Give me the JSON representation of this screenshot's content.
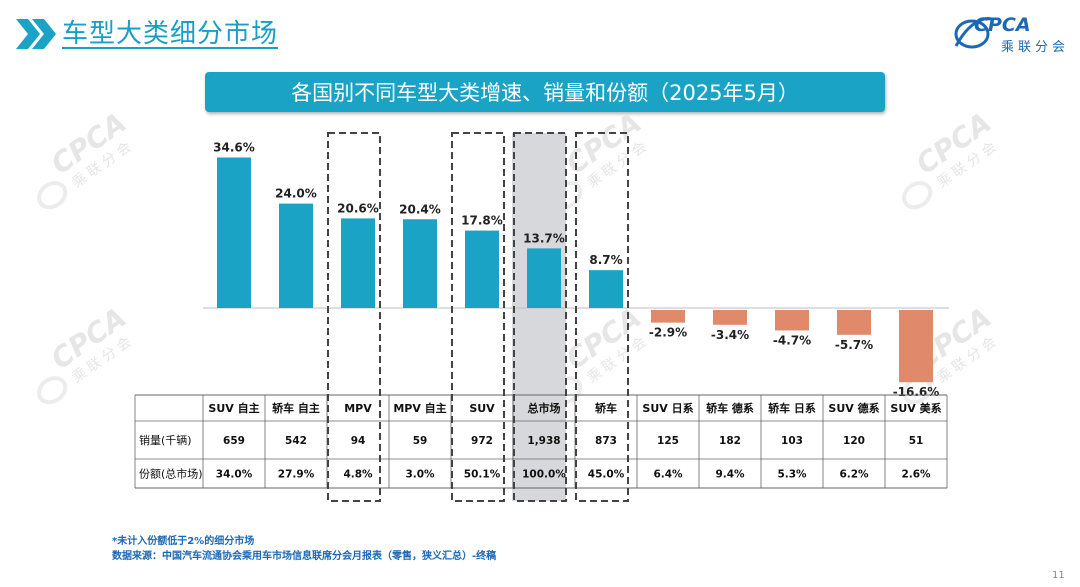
{
  "header": {
    "title": "车型大类细分市场"
  },
  "logo": {
    "name": "CPCA",
    "sub": "乘联分会"
  },
  "chart_data": {
    "type": "bar",
    "title": "各国别不同车型大类增速、销量和份额（2025年5月）",
    "categories": [
      "SUV 自主",
      "轿车 自主",
      "MPV",
      "MPV 自主",
      "SUV",
      "总市场",
      "轿车",
      "SUV 日系",
      "轿车 德系",
      "轿车 日系",
      "SUV 德系",
      "SUV 美系"
    ],
    "values": [
      34.6,
      24.0,
      20.6,
      20.4,
      17.8,
      13.7,
      8.7,
      -2.9,
      -3.4,
      -4.7,
      -5.7,
      -16.6
    ],
    "value_labels": [
      "34.6%",
      "24.0%",
      "20.6%",
      "20.4%",
      "17.8%",
      "13.7%",
      "8.7%",
      "-2.9%",
      "-3.4%",
      "-4.7%",
      "-5.7%",
      "-16.6%"
    ],
    "unit": "%",
    "colors": {
      "positive": "#1ba3c6",
      "negative": "#e0896b"
    },
    "highlighted": [
      "MPV",
      "SUV",
      "总市场",
      "轿车"
    ],
    "shaded": [
      "总市场"
    ],
    "table": {
      "rows": [
        {
          "label": "销量(千辆)",
          "values": [
            "659",
            "542",
            "94",
            "59",
            "972",
            "1,938",
            "873",
            "125",
            "182",
            "103",
            "120",
            "51"
          ]
        },
        {
          "label": "份额(总市场)",
          "values": [
            "34.0%",
            "27.9%",
            "4.8%",
            "3.0%",
            "50.1%",
            "100.0%",
            "45.0%",
            "6.4%",
            "9.4%",
            "5.3%",
            "6.2%",
            "2.6%"
          ]
        }
      ]
    }
  },
  "notes": {
    "line1": "*未计入份额低于2%的细分市场",
    "line2": "数据来源：中国汽车流通协会乘用车市场信息联席分会月报表（零售，狭义汇总）-终稿"
  },
  "page_number": "11"
}
